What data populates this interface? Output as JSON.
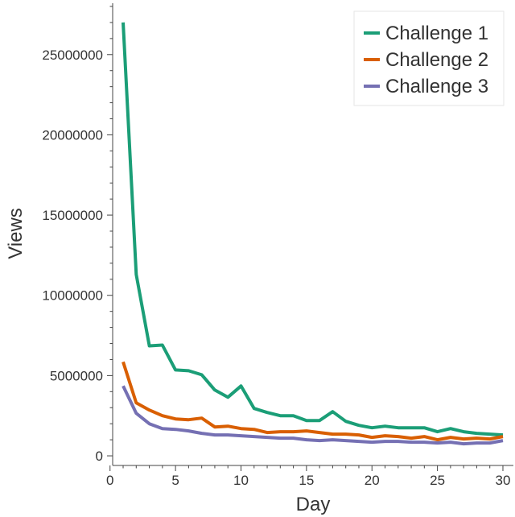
{
  "chart_data": {
    "type": "line",
    "xlabel": "Day",
    "ylabel": "Views",
    "xlim": [
      0.2,
      30.8
    ],
    "ylim": [
      -600000,
      28200000
    ],
    "xticks": [
      0,
      5,
      10,
      15,
      20,
      25,
      30
    ],
    "yticks": [
      0,
      5000000,
      10000000,
      15000000,
      20000000,
      25000000
    ],
    "x": [
      1,
      2,
      3,
      4,
      5,
      6,
      7,
      8,
      9,
      10,
      11,
      12,
      13,
      14,
      15,
      16,
      17,
      18,
      19,
      20,
      21,
      22,
      23,
      24,
      25,
      26,
      27,
      28,
      29,
      30
    ],
    "legend_position": "top-right",
    "grid": false,
    "series": [
      {
        "name": "Challenge 1",
        "color": "#1b9e77",
        "values": [
          27000000,
          11300000,
          6850000,
          6900000,
          5350000,
          5300000,
          5050000,
          4100000,
          3650000,
          4350000,
          2950000,
          2700000,
          2500000,
          2500000,
          2200000,
          2200000,
          2750000,
          2150000,
          1900000,
          1750000,
          1850000,
          1750000,
          1750000,
          1750000,
          1500000,
          1700000,
          1500000,
          1400000,
          1350000,
          1300000
        ]
      },
      {
        "name": "Challenge 2",
        "color": "#d95f02",
        "values": [
          5850000,
          3300000,
          2850000,
          2500000,
          2300000,
          2250000,
          2350000,
          1800000,
          1850000,
          1700000,
          1650000,
          1450000,
          1500000,
          1500000,
          1550000,
          1450000,
          1350000,
          1350000,
          1300000,
          1150000,
          1250000,
          1200000,
          1100000,
          1200000,
          1000000,
          1150000,
          1050000,
          1100000,
          1050000,
          1200000
        ]
      },
      {
        "name": "Challenge 3",
        "color": "#7570b3",
        "values": [
          4350000,
          2650000,
          2000000,
          1700000,
          1650000,
          1550000,
          1400000,
          1300000,
          1300000,
          1250000,
          1200000,
          1150000,
          1100000,
          1100000,
          1000000,
          950000,
          1000000,
          950000,
          900000,
          850000,
          900000,
          900000,
          850000,
          850000,
          800000,
          850000,
          750000,
          800000,
          800000,
          950000
        ]
      }
    ]
  }
}
